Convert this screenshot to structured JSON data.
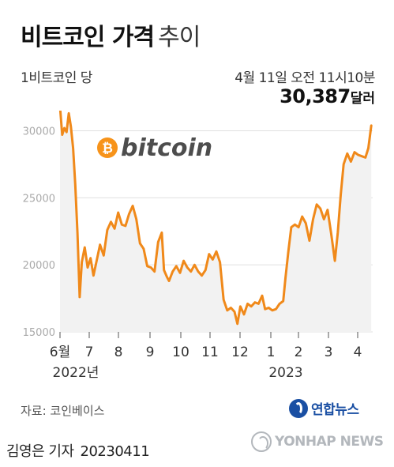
{
  "header": {
    "title_bold": "비트코인 가격",
    "title_light": "추이",
    "unit_label": "1비트코인 당",
    "date_label": "4월 11일 오전 11시10분",
    "price_value": "30,387",
    "price_unit": "달러"
  },
  "logo": {
    "text": "bitcoin",
    "symbol": "₿",
    "color": "#f7931a"
  },
  "chart_data": {
    "type": "line",
    "color": "#f0891a",
    "fill_color": "#f2f2f2",
    "ylim": [
      15000,
      31500
    ],
    "yticks": [
      15000,
      20000,
      25000,
      30000
    ],
    "ytick_labels": [
      "15000",
      "20000",
      "25000",
      "30000"
    ],
    "x_labels": [
      "6월",
      "7",
      "8",
      "9",
      "10",
      "11",
      "12",
      "1",
      "2",
      "3",
      "4"
    ],
    "year_labels": [
      "2022년",
      "2023"
    ],
    "xlim": [
      0,
      43
    ],
    "series": [
      {
        "points": [
          [
            0,
            31800
          ],
          [
            0.3,
            29700
          ],
          [
            0.6,
            30200
          ],
          [
            0.9,
            29900
          ],
          [
            1.2,
            31300
          ],
          [
            1.5,
            30300
          ],
          [
            1.8,
            28700
          ],
          [
            2.1,
            26000
          ],
          [
            2.4,
            22400
          ],
          [
            2.7,
            17600
          ],
          [
            3.0,
            20200
          ],
          [
            3.4,
            21300
          ],
          [
            3.8,
            19800
          ],
          [
            4.2,
            20500
          ],
          [
            4.6,
            19200
          ],
          [
            5.0,
            20200
          ],
          [
            5.5,
            21500
          ],
          [
            6.0,
            20700
          ],
          [
            6.5,
            22600
          ],
          [
            7.0,
            23200
          ],
          [
            7.5,
            22700
          ],
          [
            8.0,
            23900
          ],
          [
            8.5,
            23000
          ],
          [
            9.0,
            22900
          ],
          [
            9.5,
            23800
          ],
          [
            10.0,
            24400
          ],
          [
            10.5,
            23400
          ],
          [
            11.0,
            21600
          ],
          [
            11.5,
            21200
          ],
          [
            12.0,
            19900
          ],
          [
            12.5,
            19800
          ],
          [
            13.0,
            19500
          ],
          [
            13.5,
            21700
          ],
          [
            14.0,
            22400
          ],
          [
            14.3,
            19600
          ],
          [
            14.7,
            19100
          ],
          [
            15.0,
            18800
          ],
          [
            15.5,
            19500
          ],
          [
            16.0,
            19900
          ],
          [
            16.5,
            19400
          ],
          [
            17.0,
            20300
          ],
          [
            17.5,
            19800
          ],
          [
            18.0,
            19500
          ],
          [
            18.5,
            20000
          ],
          [
            19.0,
            19500
          ],
          [
            19.5,
            19200
          ],
          [
            20.0,
            19600
          ],
          [
            20.5,
            20800
          ],
          [
            21.0,
            20400
          ],
          [
            21.5,
            21000
          ],
          [
            22.0,
            20200
          ],
          [
            22.5,
            17400
          ],
          [
            23.0,
            16600
          ],
          [
            23.5,
            16800
          ],
          [
            24.0,
            16500
          ],
          [
            24.4,
            15600
          ],
          [
            24.8,
            16900
          ],
          [
            25.3,
            16300
          ],
          [
            25.8,
            17100
          ],
          [
            26.3,
            16900
          ],
          [
            26.8,
            17200
          ],
          [
            27.3,
            17100
          ],
          [
            27.8,
            17700
          ],
          [
            28.2,
            16700
          ],
          [
            28.7,
            16800
          ],
          [
            29.2,
            16600
          ],
          [
            29.7,
            16700
          ],
          [
            30.2,
            17100
          ],
          [
            30.7,
            17300
          ],
          [
            31.0,
            19000
          ],
          [
            31.4,
            21000
          ],
          [
            31.8,
            22800
          ],
          [
            32.3,
            23000
          ],
          [
            32.8,
            22800
          ],
          [
            33.3,
            23600
          ],
          [
            33.8,
            23100
          ],
          [
            34.3,
            21800
          ],
          [
            34.8,
            23400
          ],
          [
            35.3,
            24500
          ],
          [
            35.8,
            24200
          ],
          [
            36.3,
            23400
          ],
          [
            36.8,
            24100
          ],
          [
            37.3,
            22300
          ],
          [
            37.8,
            20300
          ],
          [
            38.2,
            22400
          ],
          [
            38.6,
            25200
          ],
          [
            39.0,
            27500
          ],
          [
            39.5,
            28300
          ],
          [
            40.0,
            27700
          ],
          [
            40.5,
            28400
          ],
          [
            41.0,
            28200
          ],
          [
            41.5,
            28100
          ],
          [
            42.0,
            28000
          ],
          [
            42.4,
            28700
          ],
          [
            42.8,
            30387
          ]
        ]
      }
    ]
  },
  "footer": {
    "source": "자료: 코인베이스",
    "brand": "연합뉴스",
    "reporter": "김영은 기자",
    "date": "20230411",
    "watermark": "YONHAP NEWS"
  }
}
